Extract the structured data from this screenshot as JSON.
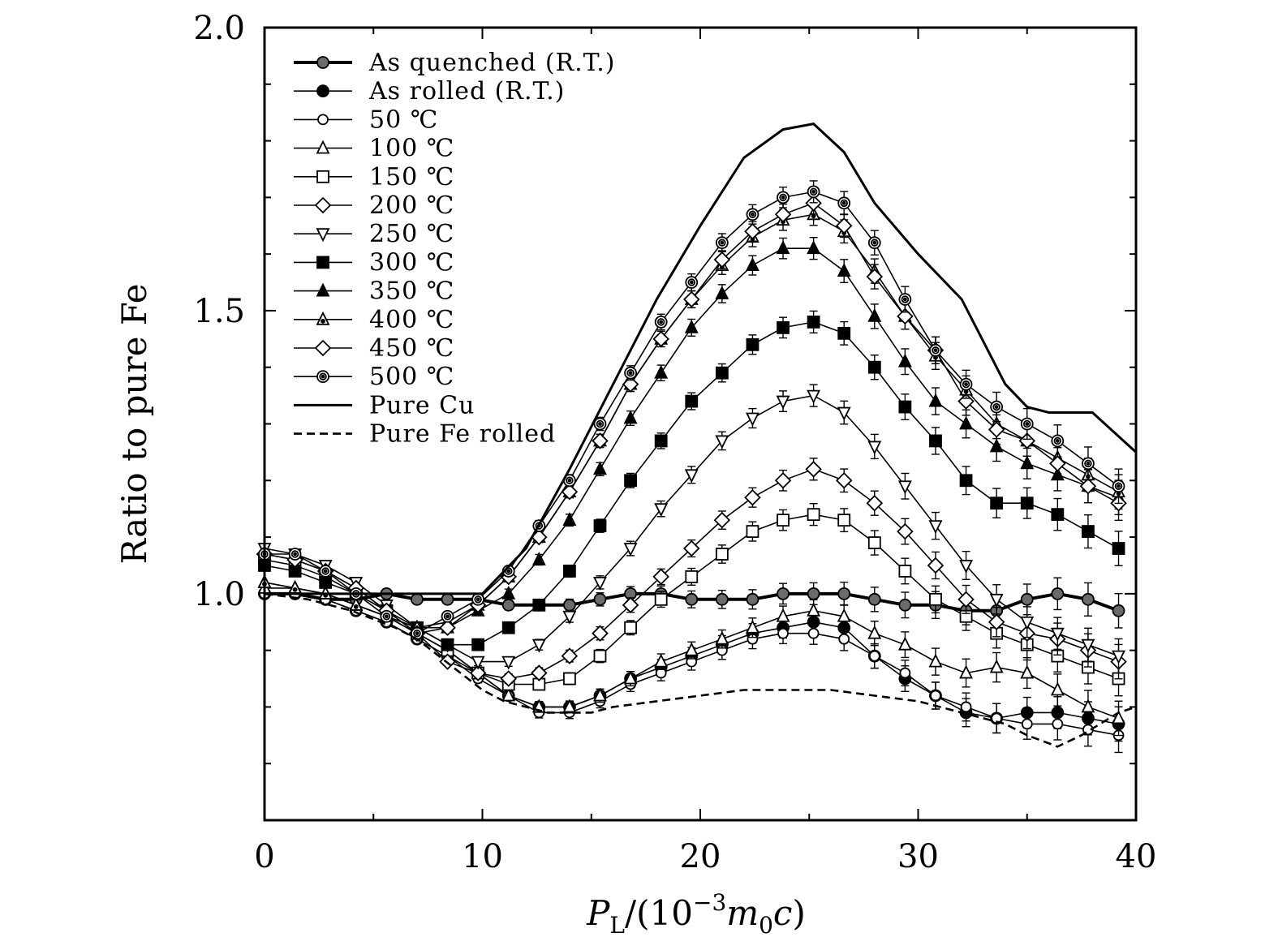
{
  "chart_data": {
    "type": "line",
    "title": "",
    "xlabel_parts": {
      "italic_p": "P",
      "sub_l": "L",
      "prefix": "/(10",
      "sup": "−3",
      "m": "m",
      "sub0": "0",
      "c": "c",
      "suffix": ")"
    },
    "ylabel": "Ratio to pure Fe",
    "xlim": [
      0,
      40
    ],
    "ylim": [
      0.6,
      2.0
    ],
    "x_ticks": [
      0,
      10,
      20,
      30,
      40
    ],
    "x_tick_labels": [
      "0",
      "10",
      "20",
      "30",
      "40"
    ],
    "y_ticks": [
      1.0,
      1.5,
      2.0
    ],
    "y_tick_labels": [
      "1.0",
      "1.5",
      "2.0"
    ],
    "legend_placement": "top-left",
    "grid": false,
    "x": [
      0,
      1.4,
      2.8,
      4.2,
      5.6,
      7.0,
      8.4,
      9.8,
      11.2,
      12.6,
      14.0,
      15.4,
      16.8,
      18.2,
      19.6,
      21.0,
      22.4,
      23.8,
      25.2,
      26.6,
      28.0,
      29.4,
      30.8,
      32.2,
      33.6,
      35.0,
      36.4,
      37.8,
      39.2
    ],
    "series": [
      {
        "name": "As quenched (R.T.)",
        "marker": "circle-gray",
        "line": "thick",
        "values": [
          1.0,
          1.0,
          0.99,
          0.99,
          1.0,
          0.99,
          0.99,
          0.99,
          0.98,
          0.98,
          0.98,
          0.99,
          1.0,
          1.0,
          0.99,
          0.99,
          0.99,
          1.0,
          1.0,
          1.0,
          0.99,
          0.98,
          0.98,
          0.97,
          0.97,
          0.99,
          1.0,
          0.99,
          0.97
        ]
      },
      {
        "name": "As rolled (R.T.)",
        "marker": "circle-filled",
        "line": "thin",
        "values": [
          1.0,
          1.0,
          0.99,
          0.97,
          0.95,
          0.92,
          0.89,
          0.86,
          0.82,
          0.8,
          0.8,
          0.82,
          0.85,
          0.87,
          0.89,
          0.91,
          0.93,
          0.94,
          0.95,
          0.94,
          0.89,
          0.85,
          0.82,
          0.79,
          0.78,
          0.79,
          0.79,
          0.78,
          0.77
        ]
      },
      {
        "name": "50 ℃",
        "marker": "circle-open",
        "line": "thin",
        "values": [
          1.0,
          1.0,
          0.99,
          0.97,
          0.95,
          0.92,
          0.89,
          0.85,
          0.82,
          0.79,
          0.79,
          0.81,
          0.84,
          0.86,
          0.88,
          0.9,
          0.92,
          0.93,
          0.93,
          0.92,
          0.89,
          0.86,
          0.82,
          0.8,
          0.78,
          0.77,
          0.77,
          0.76,
          0.75
        ]
      },
      {
        "name": "100 ℃",
        "marker": "triangle-up-open",
        "line": "thin",
        "values": [
          1.01,
          1.01,
          1.0,
          0.98,
          0.96,
          0.93,
          0.9,
          0.86,
          0.82,
          0.8,
          0.8,
          0.82,
          0.85,
          0.88,
          0.9,
          0.92,
          0.94,
          0.96,
          0.97,
          0.96,
          0.93,
          0.91,
          0.88,
          0.86,
          0.87,
          0.86,
          0.83,
          0.8,
          0.78
        ]
      },
      {
        "name": "150 ℃",
        "marker": "square-open",
        "line": "thin",
        "values": [
          1.06,
          1.05,
          1.03,
          1.0,
          0.97,
          0.93,
          0.9,
          0.86,
          0.84,
          0.84,
          0.85,
          0.89,
          0.94,
          0.99,
          1.03,
          1.07,
          1.11,
          1.13,
          1.14,
          1.13,
          1.09,
          1.04,
          0.99,
          0.96,
          0.93,
          0.91,
          0.89,
          0.87,
          0.85
        ]
      },
      {
        "name": "200 ℃",
        "marker": "diamond-open",
        "line": "thin",
        "values": [
          1.07,
          1.06,
          1.04,
          1.01,
          0.97,
          0.93,
          0.88,
          0.86,
          0.85,
          0.86,
          0.89,
          0.93,
          0.98,
          1.03,
          1.08,
          1.13,
          1.17,
          1.2,
          1.22,
          1.2,
          1.16,
          1.11,
          1.05,
          0.99,
          0.95,
          0.93,
          0.92,
          0.9,
          0.88
        ]
      },
      {
        "name": "250 ℃",
        "marker": "triangle-down-open",
        "line": "thin",
        "values": [
          1.08,
          1.07,
          1.05,
          1.02,
          0.98,
          0.94,
          0.91,
          0.88,
          0.88,
          0.91,
          0.96,
          1.02,
          1.08,
          1.15,
          1.21,
          1.27,
          1.31,
          1.34,
          1.35,
          1.32,
          1.26,
          1.19,
          1.12,
          1.05,
          0.99,
          0.95,
          0.93,
          0.91,
          0.89
        ]
      },
      {
        "name": "300 ℃",
        "marker": "square-filled",
        "line": "thin",
        "values": [
          1.05,
          1.04,
          1.02,
          1.0,
          0.97,
          0.94,
          0.91,
          0.91,
          0.94,
          0.98,
          1.04,
          1.12,
          1.2,
          1.27,
          1.34,
          1.39,
          1.44,
          1.47,
          1.48,
          1.46,
          1.4,
          1.33,
          1.27,
          1.2,
          1.16,
          1.16,
          1.14,
          1.11,
          1.08
        ]
      },
      {
        "name": "350 ℃",
        "marker": "triangle-up-filled",
        "line": "thin",
        "values": [
          1.02,
          1.01,
          1.0,
          0.98,
          0.96,
          0.94,
          0.94,
          0.97,
          1.0,
          1.06,
          1.13,
          1.22,
          1.31,
          1.39,
          1.47,
          1.53,
          1.58,
          1.61,
          1.61,
          1.57,
          1.49,
          1.41,
          1.34,
          1.3,
          1.26,
          1.23,
          1.21,
          1.19,
          1.17
        ]
      },
      {
        "name": "400 ℃",
        "marker": "triangle-up-dot",
        "line": "thin",
        "values": [
          1.02,
          1.01,
          1.0,
          0.98,
          0.96,
          0.94,
          0.95,
          0.98,
          1.03,
          1.1,
          1.18,
          1.27,
          1.37,
          1.45,
          1.52,
          1.58,
          1.63,
          1.66,
          1.67,
          1.64,
          1.57,
          1.49,
          1.42,
          1.36,
          1.3,
          1.27,
          1.24,
          1.21,
          1.18
        ]
      },
      {
        "name": "450 ℃",
        "marker": "diamond-open",
        "line": "thin",
        "values": [
          1.07,
          1.06,
          1.04,
          1.01,
          0.97,
          0.93,
          0.94,
          0.98,
          1.03,
          1.1,
          1.18,
          1.27,
          1.37,
          1.45,
          1.52,
          1.59,
          1.64,
          1.67,
          1.69,
          1.65,
          1.56,
          1.49,
          1.43,
          1.34,
          1.29,
          1.27,
          1.23,
          1.19,
          1.16
        ]
      },
      {
        "name": "500 ℃",
        "marker": "circle-bullseye",
        "line": "thin",
        "values": [
          1.07,
          1.07,
          1.04,
          1.0,
          0.96,
          0.93,
          0.96,
          0.99,
          1.04,
          1.12,
          1.2,
          1.3,
          1.39,
          1.48,
          1.55,
          1.62,
          1.67,
          1.7,
          1.71,
          1.69,
          1.62,
          1.52,
          1.43,
          1.37,
          1.33,
          1.3,
          1.27,
          1.23,
          1.19
        ]
      },
      {
        "name": "Pure Cu",
        "marker": "none",
        "line": "solid-thick",
        "x": [
          0,
          2,
          4,
          6,
          8,
          10,
          12,
          14,
          16,
          18,
          20,
          22,
          23.8,
          25.2,
          26.6,
          28,
          30,
          32,
          34,
          35,
          36,
          38,
          40
        ],
        "values": [
          1.0,
          1.0,
          1.0,
          1.0,
          1.0,
          1.0,
          1.08,
          1.22,
          1.37,
          1.52,
          1.65,
          1.77,
          1.82,
          1.83,
          1.78,
          1.69,
          1.6,
          1.52,
          1.37,
          1.33,
          1.32,
          1.32,
          1.25
        ]
      },
      {
        "name": "Pure Fe rolled",
        "marker": "none",
        "line": "dashed",
        "x": [
          0,
          2,
          4,
          6,
          7,
          8,
          9,
          10,
          11,
          12,
          13,
          14,
          15,
          16,
          18,
          20,
          22,
          24,
          26,
          28,
          30,
          32,
          34,
          35,
          36.4,
          37.5,
          39.2,
          40
        ],
        "values": [
          1.0,
          0.99,
          0.97,
          0.94,
          0.92,
          0.89,
          0.86,
          0.83,
          0.81,
          0.8,
          0.79,
          0.79,
          0.79,
          0.8,
          0.81,
          0.82,
          0.83,
          0.83,
          0.83,
          0.82,
          0.81,
          0.79,
          0.77,
          0.75,
          0.73,
          0.75,
          0.79,
          0.8
        ]
      }
    ]
  }
}
